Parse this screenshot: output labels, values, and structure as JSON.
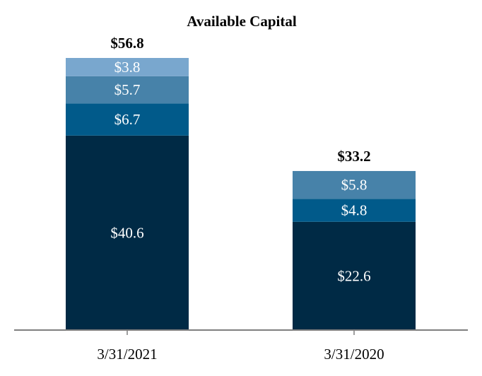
{
  "chart_data": {
    "type": "bar",
    "stacked": true,
    "title": "Available Capital",
    "categories": [
      "3/31/2021",
      "3/31/2020"
    ],
    "totals": [
      "$56.8",
      "$33.2"
    ],
    "series": [
      {
        "values": [
          40.6,
          22.6
        ],
        "labels": [
          "$40.6",
          "$22.6"
        ],
        "color": "#002a45"
      },
      {
        "values": [
          6.7,
          4.8
        ],
        "labels": [
          "$6.7",
          "$4.8"
        ],
        "color": "#015a8a"
      },
      {
        "values": [
          5.7,
          5.8
        ],
        "labels": [
          "$5.7",
          "$5.8"
        ],
        "color": "#4782a9"
      },
      {
        "values": [
          3.8,
          null
        ],
        "labels": [
          "$3.8",
          ""
        ],
        "color": "#79a7ce"
      }
    ],
    "axis_color": "#7f7f7f",
    "grid": false,
    "legend": "none"
  }
}
